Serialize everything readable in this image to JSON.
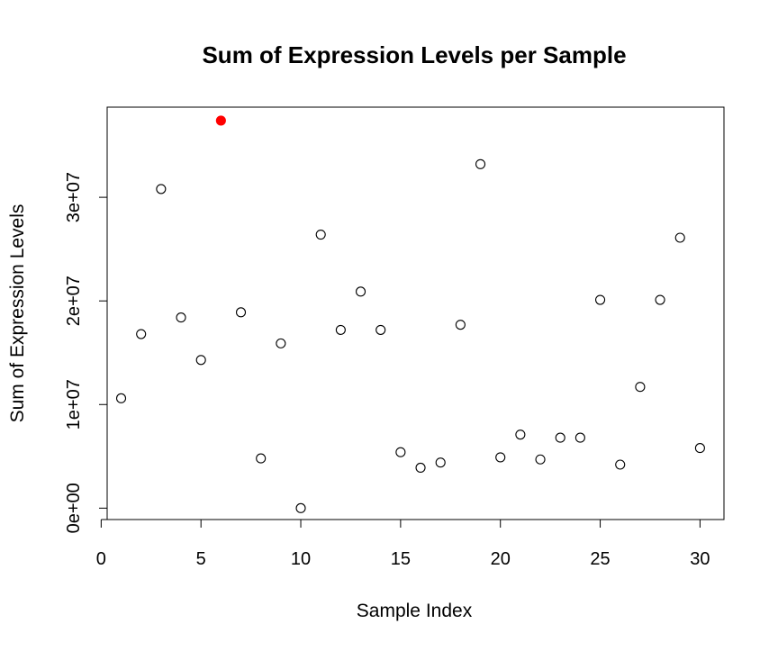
{
  "chart_data": {
    "type": "scatter",
    "title": "Sum of Expression Levels per Sample",
    "xlabel": "Sample Index",
    "ylabel": "Sum of Expression Levels",
    "xlim": [
      0.3,
      31.2
    ],
    "ylim": [
      -1100000,
      38700000
    ],
    "x_ticks": [
      0,
      5,
      10,
      15,
      20,
      25,
      30
    ],
    "x_tick_labels": [
      "0",
      "5",
      "10",
      "15",
      "20",
      "25",
      "30"
    ],
    "y_ticks": [
      0,
      10000000,
      20000000,
      30000000
    ],
    "y_tick_labels": [
      "0e+00",
      "1e+07",
      "2e+07",
      "3e+07"
    ],
    "grid": false,
    "legend": "none",
    "series": [
      {
        "x": [
          1,
          2,
          3,
          4,
          5,
          6,
          7,
          8,
          9,
          10,
          11,
          12,
          13,
          14,
          15,
          16,
          17,
          18,
          19,
          20,
          21,
          22,
          23,
          24,
          25,
          26,
          27,
          28,
          29,
          30
        ],
        "y": [
          10600000,
          16800000,
          30800000,
          18400000,
          14300000,
          37400000,
          18900000,
          4800000,
          15900000,
          0,
          26400000,
          17200000,
          20900000,
          17200000,
          5400000,
          3900000,
          4400000,
          17700000,
          33200000,
          4900000,
          7100000,
          4700000,
          6800000,
          6800000,
          20100000,
          4200000,
          11700000,
          20100000,
          26100000,
          5800000
        ],
        "colors": [
          "#000000",
          "#000000",
          "#000000",
          "#000000",
          "#000000",
          "#ff0000",
          "#000000",
          "#000000",
          "#000000",
          "#000000",
          "#000000",
          "#000000",
          "#000000",
          "#000000",
          "#000000",
          "#000000",
          "#000000",
          "#000000",
          "#000000",
          "#000000",
          "#000000",
          "#000000",
          "#000000",
          "#000000",
          "#000000",
          "#000000",
          "#000000",
          "#000000",
          "#000000",
          "#000000"
        ],
        "filled": [
          false,
          false,
          false,
          false,
          false,
          true,
          false,
          false,
          false,
          false,
          false,
          false,
          false,
          false,
          false,
          false,
          false,
          false,
          false,
          false,
          false,
          false,
          false,
          false,
          false,
          false,
          false,
          false,
          false,
          false
        ]
      }
    ]
  }
}
